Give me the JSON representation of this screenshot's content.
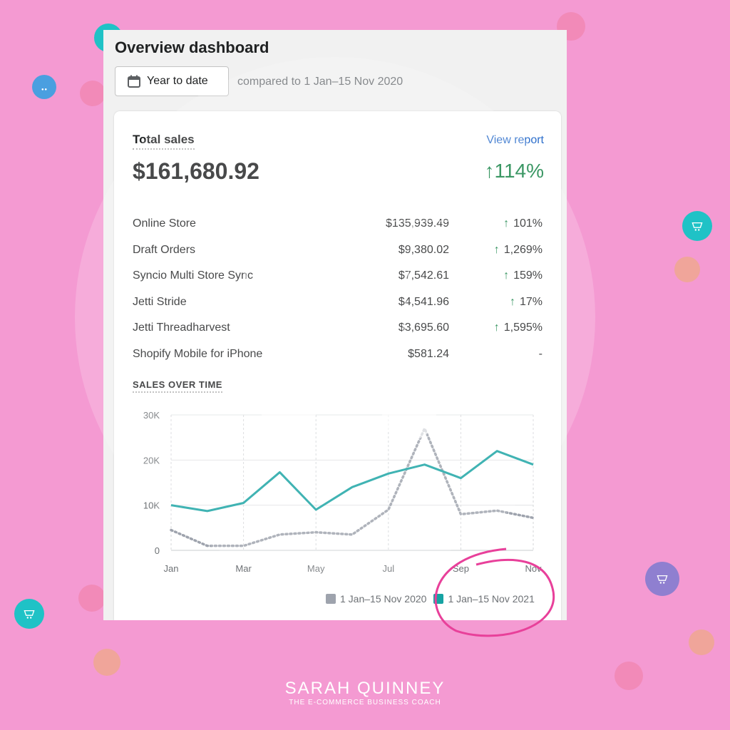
{
  "header": {
    "title": "Overview dashboard",
    "date_button": "Year to date",
    "compare_text": "compared to 1 Jan–15 Nov 2020"
  },
  "card": {
    "title": "Total sales",
    "view_report": "View report",
    "total": "$161,680.92",
    "total_change": "↑114%",
    "rows": [
      {
        "name": "Online Store",
        "amount": "$135,939.49",
        "arrow": "↑",
        "change": "101%"
      },
      {
        "name": "Draft Orders",
        "amount": "$9,380.02",
        "arrow": "↑",
        "change": "1,269%"
      },
      {
        "name": "Syncio Multi Store Sync",
        "amount": "$7,542.61",
        "arrow": "↑",
        "change": "159%"
      },
      {
        "name": "Jetti Stride",
        "amount": "$4,541.96",
        "arrow": "↑",
        "change": "17%"
      },
      {
        "name": "Jetti Threadharvest",
        "amount": "$3,695.60",
        "arrow": "↑",
        "change": "1,595%"
      },
      {
        "name": "Shopify Mobile for iPhone",
        "amount": "$581.24",
        "arrow": "",
        "change": "-"
      }
    ],
    "section_title": "SALES OVER TIME"
  },
  "chart_data": {
    "type": "line",
    "x": [
      "Jan",
      "Feb",
      "Mar",
      "Apr",
      "May",
      "Jun",
      "Jul",
      "Aug",
      "Sep",
      "Oct",
      "Nov"
    ],
    "tick_labels": [
      "Jan",
      "Mar",
      "May",
      "Jul",
      "Sep",
      "Nov"
    ],
    "y_ticks": [
      "30K",
      "20K",
      "10K",
      "0"
    ],
    "ylim": [
      0,
      30000
    ],
    "series": [
      {
        "name": "1 Jan–15 Nov 2020",
        "style": "dotted",
        "color": "#9ea3ad",
        "values": [
          4500,
          1000,
          1000,
          3500,
          4000,
          3500,
          9000,
          27000,
          8000,
          8800,
          7200
        ]
      },
      {
        "name": "1 Jan–15 Nov 2021",
        "style": "solid",
        "color": "#16a3a3",
        "values": [
          10000,
          8700,
          10500,
          17300,
          9000,
          14000,
          17000,
          19000,
          16000,
          22000,
          19000
        ]
      }
    ],
    "grid": true,
    "legend_position": "bottom-right"
  },
  "watermark": {
    "brand": "SARAH QUINNEY",
    "tagline": "THE E-COMMERCE BUSINESS COACH"
  },
  "colors": {
    "background": "#f49ad2",
    "accent_teal": "#16a3a3",
    "up_green": "#108043",
    "link": "#2c6ecb",
    "circle": "#e8409a"
  },
  "icons": {
    "date": "calendar-icon",
    "decor": "shopping-cart-icon"
  }
}
